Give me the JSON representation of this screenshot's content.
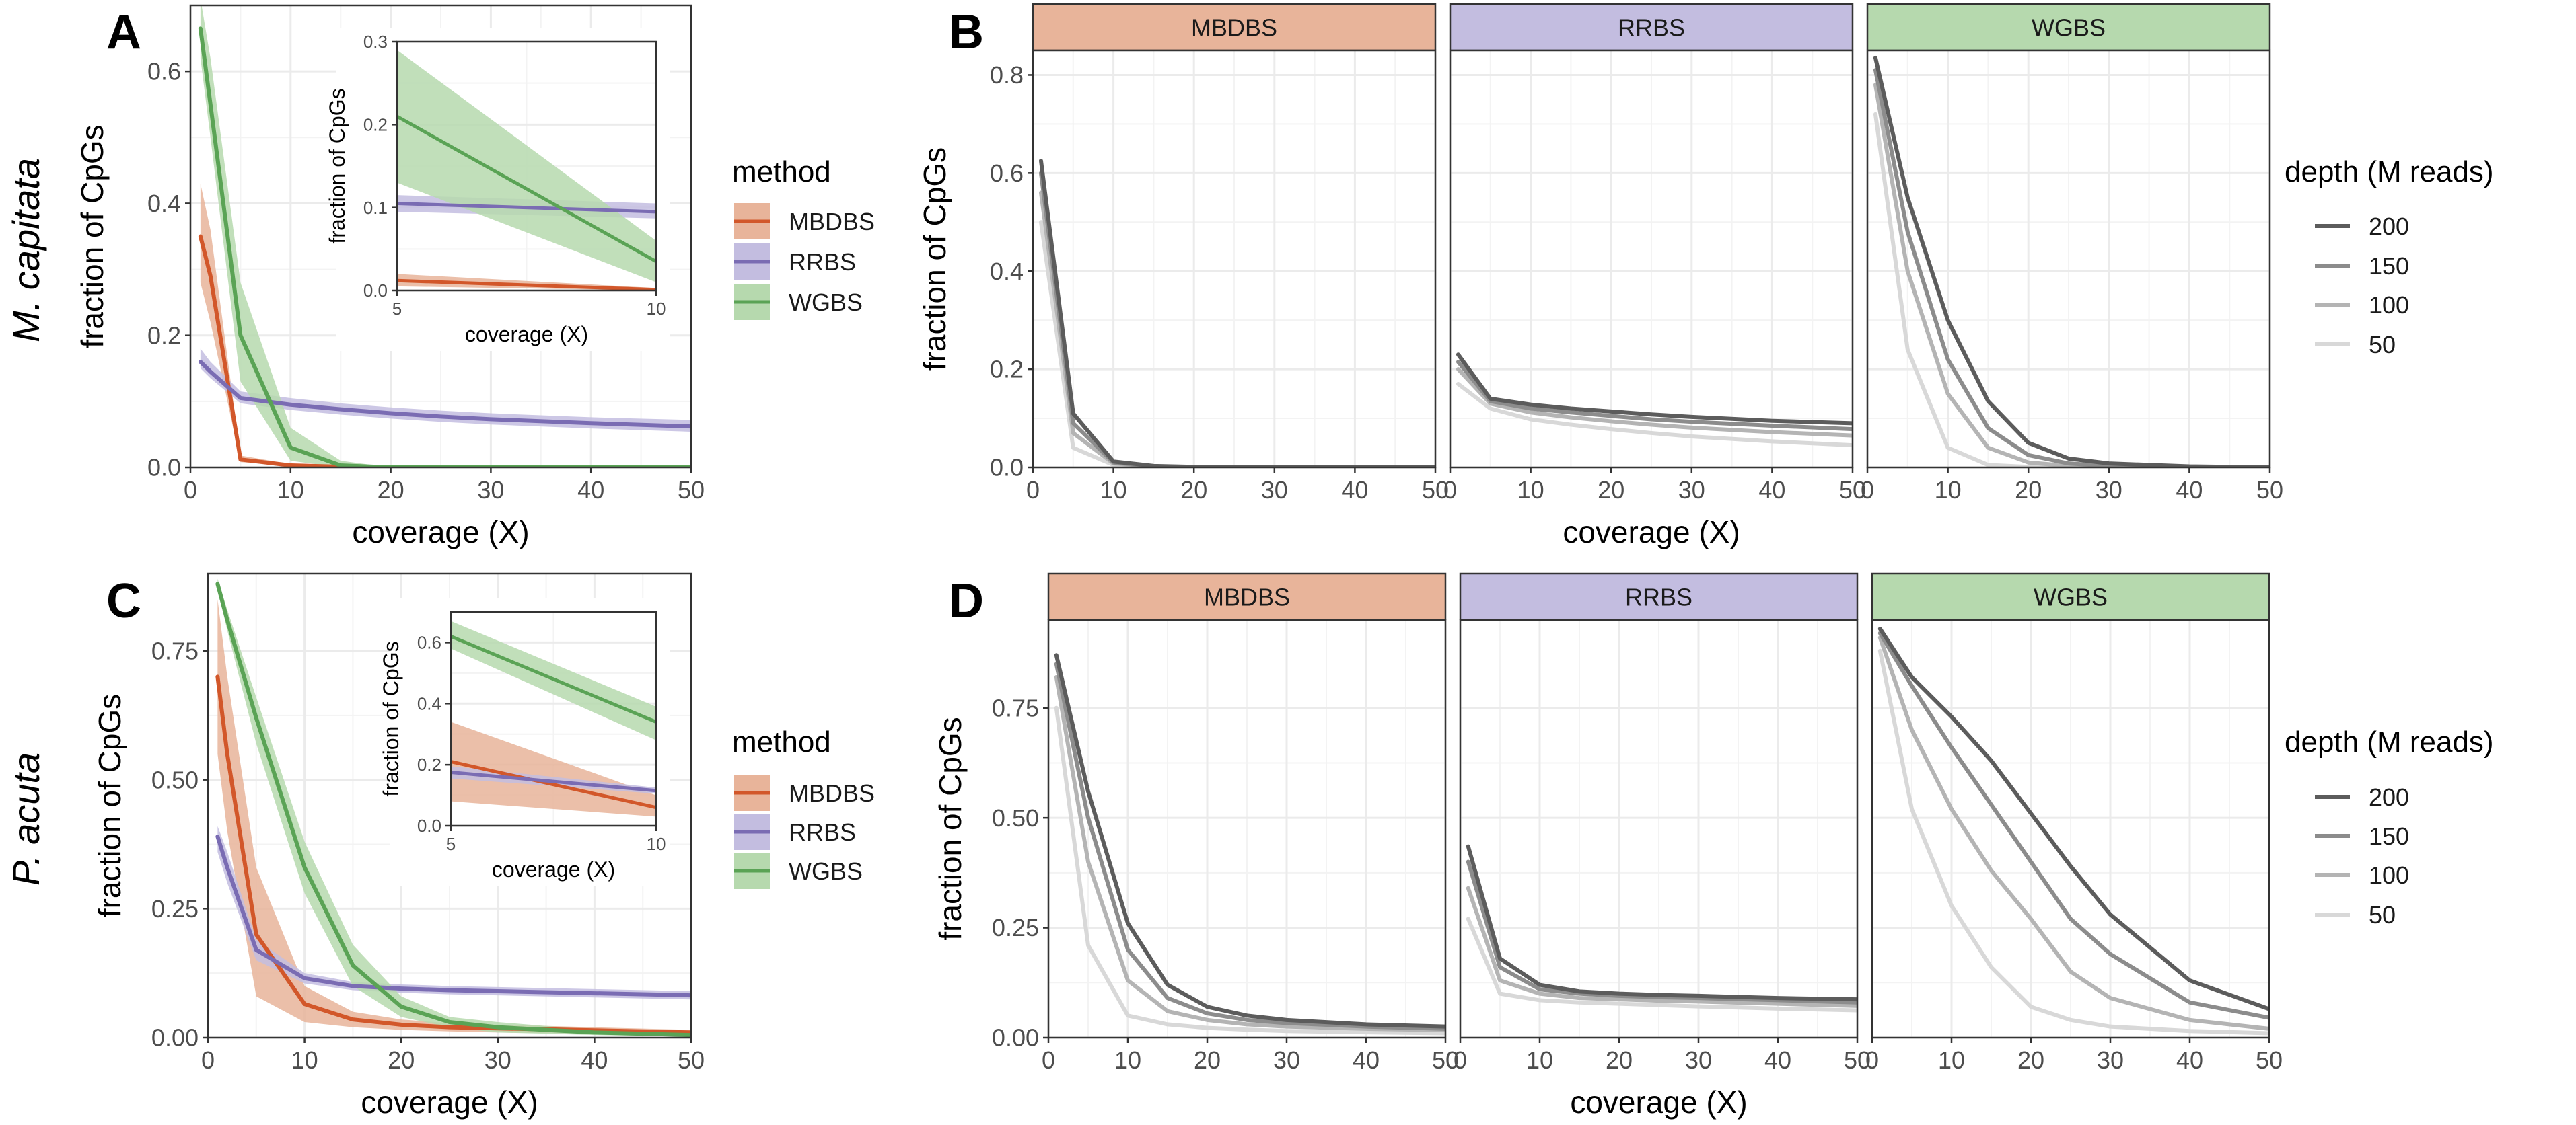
{
  "figure": {
    "row_labels": [
      "M. capitata",
      "P. acuta"
    ],
    "panel_labels": {
      "A": "A",
      "B": "B",
      "C": "C",
      "D": "D"
    }
  },
  "colors": {
    "MBDBS": "#d2572a",
    "RRBS": "#7a6cb3",
    "WGBS": "#5aa355",
    "MBDBS_fill": "#e8b49a",
    "RRBS_fill": "#c3bde0",
    "WGBS_fill": "#b6d9ae",
    "depth_200": "#5c5c5c",
    "depth_150": "#8c8c8c",
    "depth_100": "#b4b4b4",
    "depth_50": "#d8d8d8",
    "panel_border": "#333333",
    "grid": "#ebebeb"
  },
  "legend_method": {
    "title": "method",
    "items": [
      "MBDBS",
      "RRBS",
      "WGBS"
    ]
  },
  "legend_depth": {
    "title": "depth (M reads)",
    "items": [
      "200",
      "150",
      "100",
      "50"
    ]
  },
  "chart_data": [
    {
      "id": "A",
      "type": "line",
      "row": "M. capitata",
      "xlabel": "coverage (X)",
      "ylabel": "fraction of CpGs",
      "xlim": [
        0,
        50
      ],
      "ylim": [
        0,
        0.7
      ],
      "xticks": [
        0,
        10,
        20,
        30,
        40,
        50
      ],
      "yticks": [
        0.0,
        0.2,
        0.4,
        0.6
      ],
      "ytick_labels": [
        "0.0",
        "0.2",
        "0.4",
        "0.6"
      ],
      "x": [
        1,
        2,
        5,
        10,
        15,
        20,
        25,
        30,
        40,
        50
      ],
      "series": [
        {
          "name": "MBDBS",
          "values": [
            0.35,
            0.29,
            0.012,
            0.003,
            0.001,
            0.0,
            0.0,
            0.0,
            0.0,
            0.0
          ],
          "lower": [
            0.28,
            0.22,
            0.008,
            0.002,
            0.0,
            0.0,
            0.0,
            0.0,
            0.0,
            0.0
          ],
          "upper": [
            0.43,
            0.36,
            0.018,
            0.005,
            0.002,
            0.0,
            0.0,
            0.0,
            0.0,
            0.0
          ]
        },
        {
          "name": "RRBS",
          "values": [
            0.16,
            0.145,
            0.105,
            0.095,
            0.088,
            0.082,
            0.077,
            0.073,
            0.067,
            0.062
          ],
          "lower": [
            0.15,
            0.135,
            0.097,
            0.087,
            0.08,
            0.074,
            0.069,
            0.065,
            0.059,
            0.054
          ],
          "upper": [
            0.18,
            0.16,
            0.115,
            0.105,
            0.097,
            0.091,
            0.086,
            0.082,
            0.076,
            0.072
          ]
        },
        {
          "name": "WGBS",
          "values": [
            0.665,
            0.55,
            0.2,
            0.03,
            0.003,
            0.0,
            0.0,
            0.0,
            0.0,
            0.0
          ],
          "lower": [
            0.62,
            0.5,
            0.13,
            0.01,
            0.0,
            0.0,
            0.0,
            0.0,
            0.0,
            0.0
          ],
          "upper": [
            0.71,
            0.62,
            0.28,
            0.06,
            0.01,
            0.0,
            0.0,
            0.0,
            0.0,
            0.0
          ]
        }
      ],
      "inset": {
        "xlabel": "coverage (X)",
        "ylabel": "fraction of CpGs",
        "xlim": [
          5,
          10
        ],
        "ylim": [
          0,
          0.3
        ],
        "xticks": [
          5,
          10
        ],
        "yticks": [
          0.0,
          0.1,
          0.2,
          0.3
        ],
        "ytick_labels": [
          "0.0",
          "0.1",
          "0.2",
          "0.3"
        ],
        "x": [
          5,
          10
        ],
        "series": [
          {
            "name": "MBDBS",
            "values": [
              0.012,
              0.001
            ],
            "lower": [
              0.005,
              0.0
            ],
            "upper": [
              0.02,
              0.003
            ]
          },
          {
            "name": "RRBS",
            "values": [
              0.105,
              0.095
            ],
            "lower": [
              0.095,
              0.087
            ],
            "upper": [
              0.115,
              0.105
            ]
          },
          {
            "name": "WGBS",
            "values": [
              0.21,
              0.035
            ],
            "lower": [
              0.13,
              0.01
            ],
            "upper": [
              0.29,
              0.06
            ]
          }
        ]
      }
    },
    {
      "id": "B",
      "type": "line",
      "row": "M. capitata",
      "facets": [
        "MBDBS",
        "RRBS",
        "WGBS"
      ],
      "xlabel": "coverage (X)",
      "ylabel": "fraction of CpGs",
      "xlim": [
        0,
        50
      ],
      "ylim": [
        0,
        0.85
      ],
      "xticks": [
        0,
        10,
        20,
        30,
        40,
        50
      ],
      "yticks": [
        0.0,
        0.2,
        0.4,
        0.6,
        0.8
      ],
      "ytick_labels": [
        "0.0",
        "0.2",
        "0.4",
        "0.6",
        "0.8"
      ],
      "x": [
        1,
        5,
        10,
        15,
        20,
        25,
        30,
        40,
        50
      ],
      "panels": [
        {
          "facet": "MBDBS",
          "series": [
            {
              "name": "200",
              "values": [
                0.625,
                0.11,
                0.012,
                0.003,
                0.001,
                0.0,
                0.0,
                0.0,
                0.0
              ]
            },
            {
              "name": "150",
              "values": [
                0.6,
                0.09,
                0.01,
                0.002,
                0.001,
                0.0,
                0.0,
                0.0,
                0.0
              ]
            },
            {
              "name": "100",
              "values": [
                0.56,
                0.07,
                0.008,
                0.002,
                0.0,
                0.0,
                0.0,
                0.0,
                0.0
              ]
            },
            {
              "name": "50",
              "values": [
                0.5,
                0.04,
                0.005,
                0.001,
                0.0,
                0.0,
                0.0,
                0.0,
                0.0
              ]
            }
          ]
        },
        {
          "facet": "RRBS",
          "series": [
            {
              "name": "200",
              "values": [
                0.23,
                0.14,
                0.128,
                0.12,
                0.114,
                0.108,
                0.103,
                0.095,
                0.09
              ]
            },
            {
              "name": "150",
              "values": [
                0.215,
                0.135,
                0.12,
                0.112,
                0.105,
                0.098,
                0.093,
                0.085,
                0.078
              ]
            },
            {
              "name": "100",
              "values": [
                0.2,
                0.13,
                0.112,
                0.102,
                0.094,
                0.087,
                0.081,
                0.072,
                0.065
              ]
            },
            {
              "name": "50",
              "values": [
                0.17,
                0.12,
                0.098,
                0.087,
                0.078,
                0.07,
                0.063,
                0.053,
                0.045
              ]
            }
          ]
        },
        {
          "facet": "WGBS",
          "series": [
            {
              "name": "200",
              "values": [
                0.835,
                0.55,
                0.3,
                0.135,
                0.05,
                0.018,
                0.008,
                0.002,
                0.0
              ]
            },
            {
              "name": "150",
              "values": [
                0.81,
                0.48,
                0.22,
                0.08,
                0.025,
                0.008,
                0.003,
                0.001,
                0.0
              ]
            },
            {
              "name": "100",
              "values": [
                0.78,
                0.4,
                0.15,
                0.04,
                0.01,
                0.003,
                0.001,
                0.0,
                0.0
              ]
            },
            {
              "name": "50",
              "values": [
                0.72,
                0.24,
                0.04,
                0.005,
                0.001,
                0.0,
                0.0,
                0.0,
                0.0
              ]
            }
          ]
        }
      ]
    },
    {
      "id": "C",
      "type": "line",
      "row": "P. acuta",
      "xlabel": "coverage (X)",
      "ylabel": "fraction of CpGs",
      "xlim": [
        0,
        50
      ],
      "ylim": [
        0,
        0.9
      ],
      "xticks": [
        0,
        10,
        20,
        30,
        40,
        50
      ],
      "yticks": [
        0.0,
        0.25,
        0.5,
        0.75
      ],
      "ytick_labels": [
        "0.00",
        "0.25",
        "0.50",
        "0.75"
      ],
      "x": [
        1,
        2,
        5,
        10,
        15,
        20,
        25,
        30,
        40,
        50
      ],
      "series": [
        {
          "name": "MBDBS",
          "values": [
            0.7,
            0.55,
            0.2,
            0.065,
            0.035,
            0.025,
            0.02,
            0.018,
            0.014,
            0.01
          ],
          "lower": [
            0.55,
            0.4,
            0.08,
            0.03,
            0.02,
            0.015,
            0.012,
            0.01,
            0.008,
            0.005
          ],
          "upper": [
            0.85,
            0.7,
            0.33,
            0.1,
            0.05,
            0.035,
            0.028,
            0.025,
            0.02,
            0.015
          ]
        },
        {
          "name": "RRBS",
          "values": [
            0.39,
            0.33,
            0.17,
            0.115,
            0.1,
            0.095,
            0.092,
            0.09,
            0.086,
            0.082
          ],
          "lower": [
            0.36,
            0.3,
            0.15,
            0.105,
            0.092,
            0.087,
            0.084,
            0.082,
            0.078,
            0.074
          ],
          "upper": [
            0.41,
            0.36,
            0.19,
            0.125,
            0.108,
            0.103,
            0.1,
            0.098,
            0.094,
            0.09
          ]
        },
        {
          "name": "WGBS",
          "values": [
            0.88,
            0.81,
            0.62,
            0.33,
            0.14,
            0.06,
            0.03,
            0.02,
            0.01,
            0.005
          ],
          "lower": [
            0.87,
            0.79,
            0.57,
            0.28,
            0.1,
            0.04,
            0.02,
            0.01,
            0.005,
            0.002
          ],
          "upper": [
            0.89,
            0.83,
            0.66,
            0.38,
            0.18,
            0.08,
            0.04,
            0.03,
            0.015,
            0.008
          ]
        }
      ],
      "inset": {
        "xlabel": "coverage (X)",
        "ylabel": "fraction of CpGs",
        "xlim": [
          5,
          10
        ],
        "ylim": [
          0,
          0.7
        ],
        "xticks": [
          5,
          10
        ],
        "yticks": [
          0.0,
          0.2,
          0.4,
          0.6
        ],
        "ytick_labels": [
          "0.0",
          "0.2",
          "0.4",
          "0.6"
        ],
        "x": [
          5,
          10
        ],
        "series": [
          {
            "name": "MBDBS",
            "values": [
              0.21,
              0.06
            ],
            "lower": [
              0.08,
              0.03
            ],
            "upper": [
              0.34,
              0.1
            ]
          },
          {
            "name": "RRBS",
            "values": [
              0.175,
              0.115
            ],
            "lower": [
              0.155,
              0.105
            ],
            "upper": [
              0.195,
              0.125
            ]
          },
          {
            "name": "WGBS",
            "values": [
              0.62,
              0.34
            ],
            "lower": [
              0.58,
              0.28
            ],
            "upper": [
              0.67,
              0.39
            ]
          }
        ]
      }
    },
    {
      "id": "D",
      "type": "line",
      "row": "P. acuta",
      "facets": [
        "MBDBS",
        "RRBS",
        "WGBS"
      ],
      "xlabel": "coverage (X)",
      "ylabel": "fraction of CpGs",
      "xlim": [
        0,
        50
      ],
      "ylim": [
        0,
        0.95
      ],
      "xticks": [
        0,
        10,
        20,
        30,
        40,
        50
      ],
      "yticks": [
        0.0,
        0.25,
        0.5,
        0.75
      ],
      "ytick_labels": [
        "0.00",
        "0.25",
        "0.50",
        "0.75"
      ],
      "x": [
        1,
        5,
        10,
        15,
        20,
        25,
        30,
        40,
        50
      ],
      "panels": [
        {
          "facet": "MBDBS",
          "series": [
            {
              "name": "200",
              "values": [
                0.87,
                0.56,
                0.26,
                0.12,
                0.07,
                0.05,
                0.04,
                0.03,
                0.025
              ]
            },
            {
              "name": "150",
              "values": [
                0.85,
                0.5,
                0.2,
                0.09,
                0.055,
                0.04,
                0.033,
                0.025,
                0.02
              ]
            },
            {
              "name": "100",
              "values": [
                0.82,
                0.4,
                0.13,
                0.06,
                0.04,
                0.03,
                0.025,
                0.02,
                0.017
              ]
            },
            {
              "name": "50",
              "values": [
                0.75,
                0.21,
                0.05,
                0.03,
                0.022,
                0.018,
                0.015,
                0.012,
                0.01
              ]
            }
          ]
        },
        {
          "facet": "RRBS",
          "series": [
            {
              "name": "200",
              "values": [
                0.435,
                0.18,
                0.12,
                0.105,
                0.1,
                0.097,
                0.095,
                0.09,
                0.087
              ]
            },
            {
              "name": "150",
              "values": [
                0.4,
                0.16,
                0.11,
                0.1,
                0.095,
                0.092,
                0.09,
                0.085,
                0.08
              ]
            },
            {
              "name": "100",
              "values": [
                0.34,
                0.13,
                0.1,
                0.09,
                0.087,
                0.084,
                0.082,
                0.077,
                0.072
              ]
            },
            {
              "name": "50",
              "values": [
                0.27,
                0.1,
                0.085,
                0.08,
                0.077,
                0.074,
                0.071,
                0.066,
                0.062
              ]
            }
          ]
        },
        {
          "facet": "WGBS",
          "series": [
            {
              "name": "200",
              "values": [
                0.93,
                0.82,
                0.73,
                0.63,
                0.51,
                0.39,
                0.28,
                0.13,
                0.065
              ]
            },
            {
              "name": "150",
              "values": [
                0.92,
                0.8,
                0.66,
                0.53,
                0.4,
                0.27,
                0.19,
                0.08,
                0.045
              ]
            },
            {
              "name": "100",
              "values": [
                0.91,
                0.7,
                0.52,
                0.38,
                0.27,
                0.15,
                0.09,
                0.04,
                0.02
              ]
            },
            {
              "name": "50",
              "values": [
                0.88,
                0.52,
                0.3,
                0.16,
                0.07,
                0.04,
                0.025,
                0.015,
                0.01
              ]
            }
          ]
        }
      ]
    }
  ]
}
